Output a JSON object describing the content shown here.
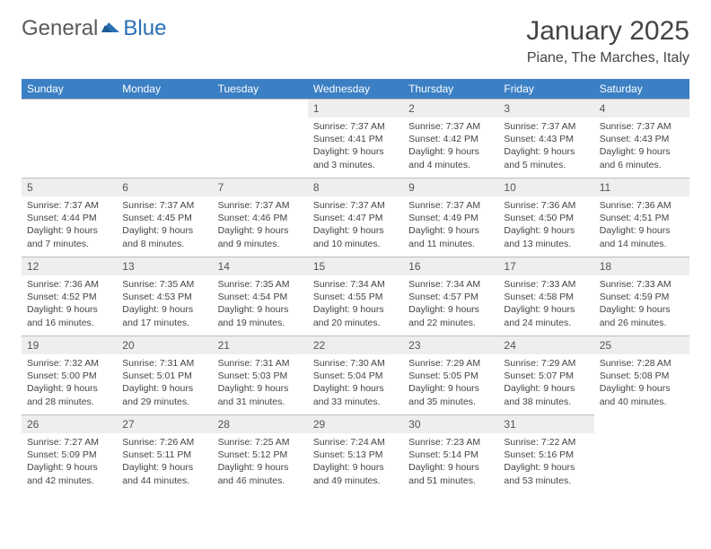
{
  "brand": {
    "part1": "General",
    "part2": "Blue"
  },
  "title": "January 2025",
  "location": "Piane, The Marches, Italy",
  "colors": {
    "header_bg": "#3b7fc4",
    "header_text": "#ffffff",
    "daynum_bg": "#eeeeee",
    "border": "#bcbcbc",
    "logo_gray": "#5a5a5a",
    "logo_blue": "#2a6fb5"
  },
  "weekdays": [
    "Sunday",
    "Monday",
    "Tuesday",
    "Wednesday",
    "Thursday",
    "Friday",
    "Saturday"
  ],
  "leading_blanks": 3,
  "days": [
    {
      "n": 1,
      "sunrise": "7:37 AM",
      "sunset": "4:41 PM",
      "daylight": "9 hours and 3 minutes."
    },
    {
      "n": 2,
      "sunrise": "7:37 AM",
      "sunset": "4:42 PM",
      "daylight": "9 hours and 4 minutes."
    },
    {
      "n": 3,
      "sunrise": "7:37 AM",
      "sunset": "4:43 PM",
      "daylight": "9 hours and 5 minutes."
    },
    {
      "n": 4,
      "sunrise": "7:37 AM",
      "sunset": "4:43 PM",
      "daylight": "9 hours and 6 minutes."
    },
    {
      "n": 5,
      "sunrise": "7:37 AM",
      "sunset": "4:44 PM",
      "daylight": "9 hours and 7 minutes."
    },
    {
      "n": 6,
      "sunrise": "7:37 AM",
      "sunset": "4:45 PM",
      "daylight": "9 hours and 8 minutes."
    },
    {
      "n": 7,
      "sunrise": "7:37 AM",
      "sunset": "4:46 PM",
      "daylight": "9 hours and 9 minutes."
    },
    {
      "n": 8,
      "sunrise": "7:37 AM",
      "sunset": "4:47 PM",
      "daylight": "9 hours and 10 minutes."
    },
    {
      "n": 9,
      "sunrise": "7:37 AM",
      "sunset": "4:49 PM",
      "daylight": "9 hours and 11 minutes."
    },
    {
      "n": 10,
      "sunrise": "7:36 AM",
      "sunset": "4:50 PM",
      "daylight": "9 hours and 13 minutes."
    },
    {
      "n": 11,
      "sunrise": "7:36 AM",
      "sunset": "4:51 PM",
      "daylight": "9 hours and 14 minutes."
    },
    {
      "n": 12,
      "sunrise": "7:36 AM",
      "sunset": "4:52 PM",
      "daylight": "9 hours and 16 minutes."
    },
    {
      "n": 13,
      "sunrise": "7:35 AM",
      "sunset": "4:53 PM",
      "daylight": "9 hours and 17 minutes."
    },
    {
      "n": 14,
      "sunrise": "7:35 AM",
      "sunset": "4:54 PM",
      "daylight": "9 hours and 19 minutes."
    },
    {
      "n": 15,
      "sunrise": "7:34 AM",
      "sunset": "4:55 PM",
      "daylight": "9 hours and 20 minutes."
    },
    {
      "n": 16,
      "sunrise": "7:34 AM",
      "sunset": "4:57 PM",
      "daylight": "9 hours and 22 minutes."
    },
    {
      "n": 17,
      "sunrise": "7:33 AM",
      "sunset": "4:58 PM",
      "daylight": "9 hours and 24 minutes."
    },
    {
      "n": 18,
      "sunrise": "7:33 AM",
      "sunset": "4:59 PM",
      "daylight": "9 hours and 26 minutes."
    },
    {
      "n": 19,
      "sunrise": "7:32 AM",
      "sunset": "5:00 PM",
      "daylight": "9 hours and 28 minutes."
    },
    {
      "n": 20,
      "sunrise": "7:31 AM",
      "sunset": "5:01 PM",
      "daylight": "9 hours and 29 minutes."
    },
    {
      "n": 21,
      "sunrise": "7:31 AM",
      "sunset": "5:03 PM",
      "daylight": "9 hours and 31 minutes."
    },
    {
      "n": 22,
      "sunrise": "7:30 AM",
      "sunset": "5:04 PM",
      "daylight": "9 hours and 33 minutes."
    },
    {
      "n": 23,
      "sunrise": "7:29 AM",
      "sunset": "5:05 PM",
      "daylight": "9 hours and 35 minutes."
    },
    {
      "n": 24,
      "sunrise": "7:29 AM",
      "sunset": "5:07 PM",
      "daylight": "9 hours and 38 minutes."
    },
    {
      "n": 25,
      "sunrise": "7:28 AM",
      "sunset": "5:08 PM",
      "daylight": "9 hours and 40 minutes."
    },
    {
      "n": 26,
      "sunrise": "7:27 AM",
      "sunset": "5:09 PM",
      "daylight": "9 hours and 42 minutes."
    },
    {
      "n": 27,
      "sunrise": "7:26 AM",
      "sunset": "5:11 PM",
      "daylight": "9 hours and 44 minutes."
    },
    {
      "n": 28,
      "sunrise": "7:25 AM",
      "sunset": "5:12 PM",
      "daylight": "9 hours and 46 minutes."
    },
    {
      "n": 29,
      "sunrise": "7:24 AM",
      "sunset": "5:13 PM",
      "daylight": "9 hours and 49 minutes."
    },
    {
      "n": 30,
      "sunrise": "7:23 AM",
      "sunset": "5:14 PM",
      "daylight": "9 hours and 51 minutes."
    },
    {
      "n": 31,
      "sunrise": "7:22 AM",
      "sunset": "5:16 PM",
      "daylight": "9 hours and 53 minutes."
    }
  ],
  "labels": {
    "sunrise": "Sunrise:",
    "sunset": "Sunset:",
    "daylight": "Daylight:"
  }
}
